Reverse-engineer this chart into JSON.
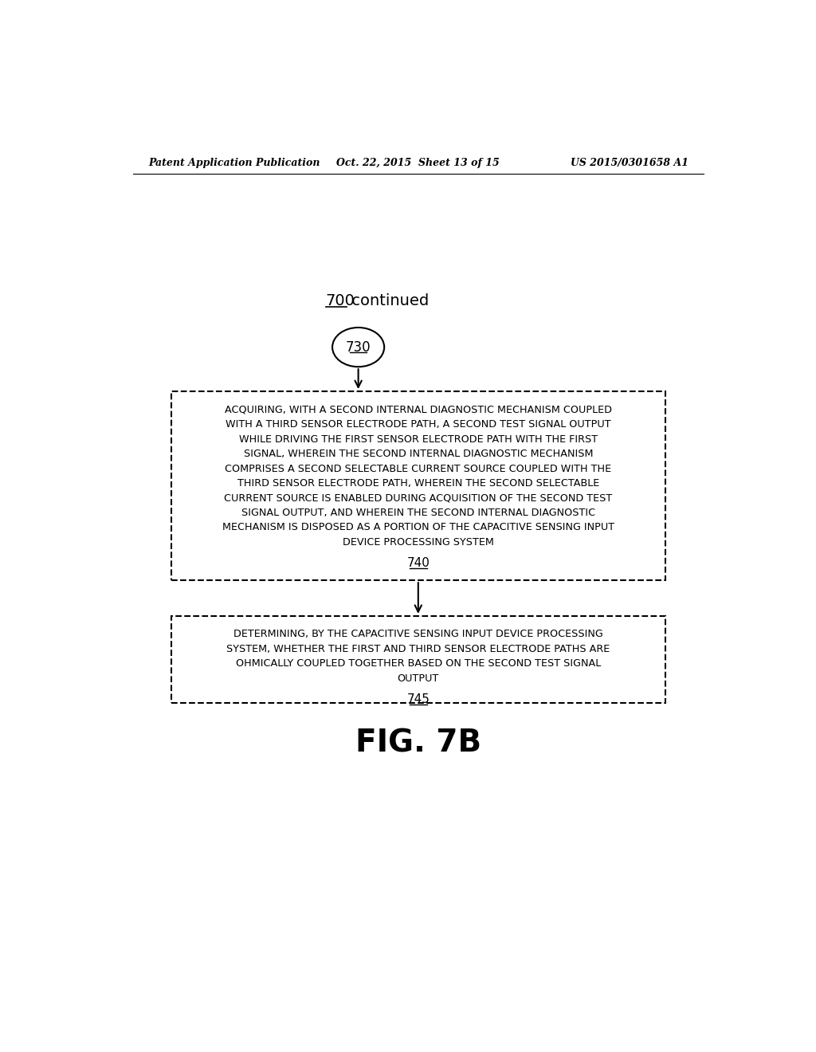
{
  "bg_color": "#ffffff",
  "header_left": "Patent Application Publication",
  "header_center": "Oct. 22, 2015  Sheet 13 of 15",
  "header_right": "US 2015/0301658 A1",
  "title_label": "700",
  "title_text": " continued",
  "circle_label": "730",
  "box1_lines": [
    "ACQUIRING, WITH A SECOND INTERNAL DIAGNOSTIC MECHANISM COUPLED",
    "WITH A THIRD SENSOR ELECTRODE PATH, A SECOND TEST SIGNAL OUTPUT",
    "WHILE DRIVING THE FIRST SENSOR ELECTRODE PATH WITH THE FIRST",
    "SIGNAL, WHEREIN THE SECOND INTERNAL DIAGNOSTIC MECHANISM",
    "COMPRISES A SECOND SELECTABLE CURRENT SOURCE COUPLED WITH THE",
    "THIRD SENSOR ELECTRODE PATH, WHEREIN THE SECOND SELECTABLE",
    "CURRENT SOURCE IS ENABLED DURING ACQUISITION OF THE SECOND TEST",
    "SIGNAL OUTPUT, AND WHEREIN THE SECOND INTERNAL DIAGNOSTIC",
    "MECHANISM IS DISPOSED AS A PORTION OF THE CAPACITIVE SENSING INPUT",
    "DEVICE PROCESSING SYSTEM"
  ],
  "box1_label": "740",
  "box2_lines": [
    "DETERMINING, BY THE CAPACITIVE SENSING INPUT DEVICE PROCESSING",
    "SYSTEM, WHETHER THE FIRST AND THIRD SENSOR ELECTRODE PATHS ARE",
    "OHMICALLY COUPLED TOGETHER BASED ON THE SECOND TEST SIGNAL",
    "OUTPUT"
  ],
  "box2_label": "745",
  "fig_label": "FIG. 7B"
}
